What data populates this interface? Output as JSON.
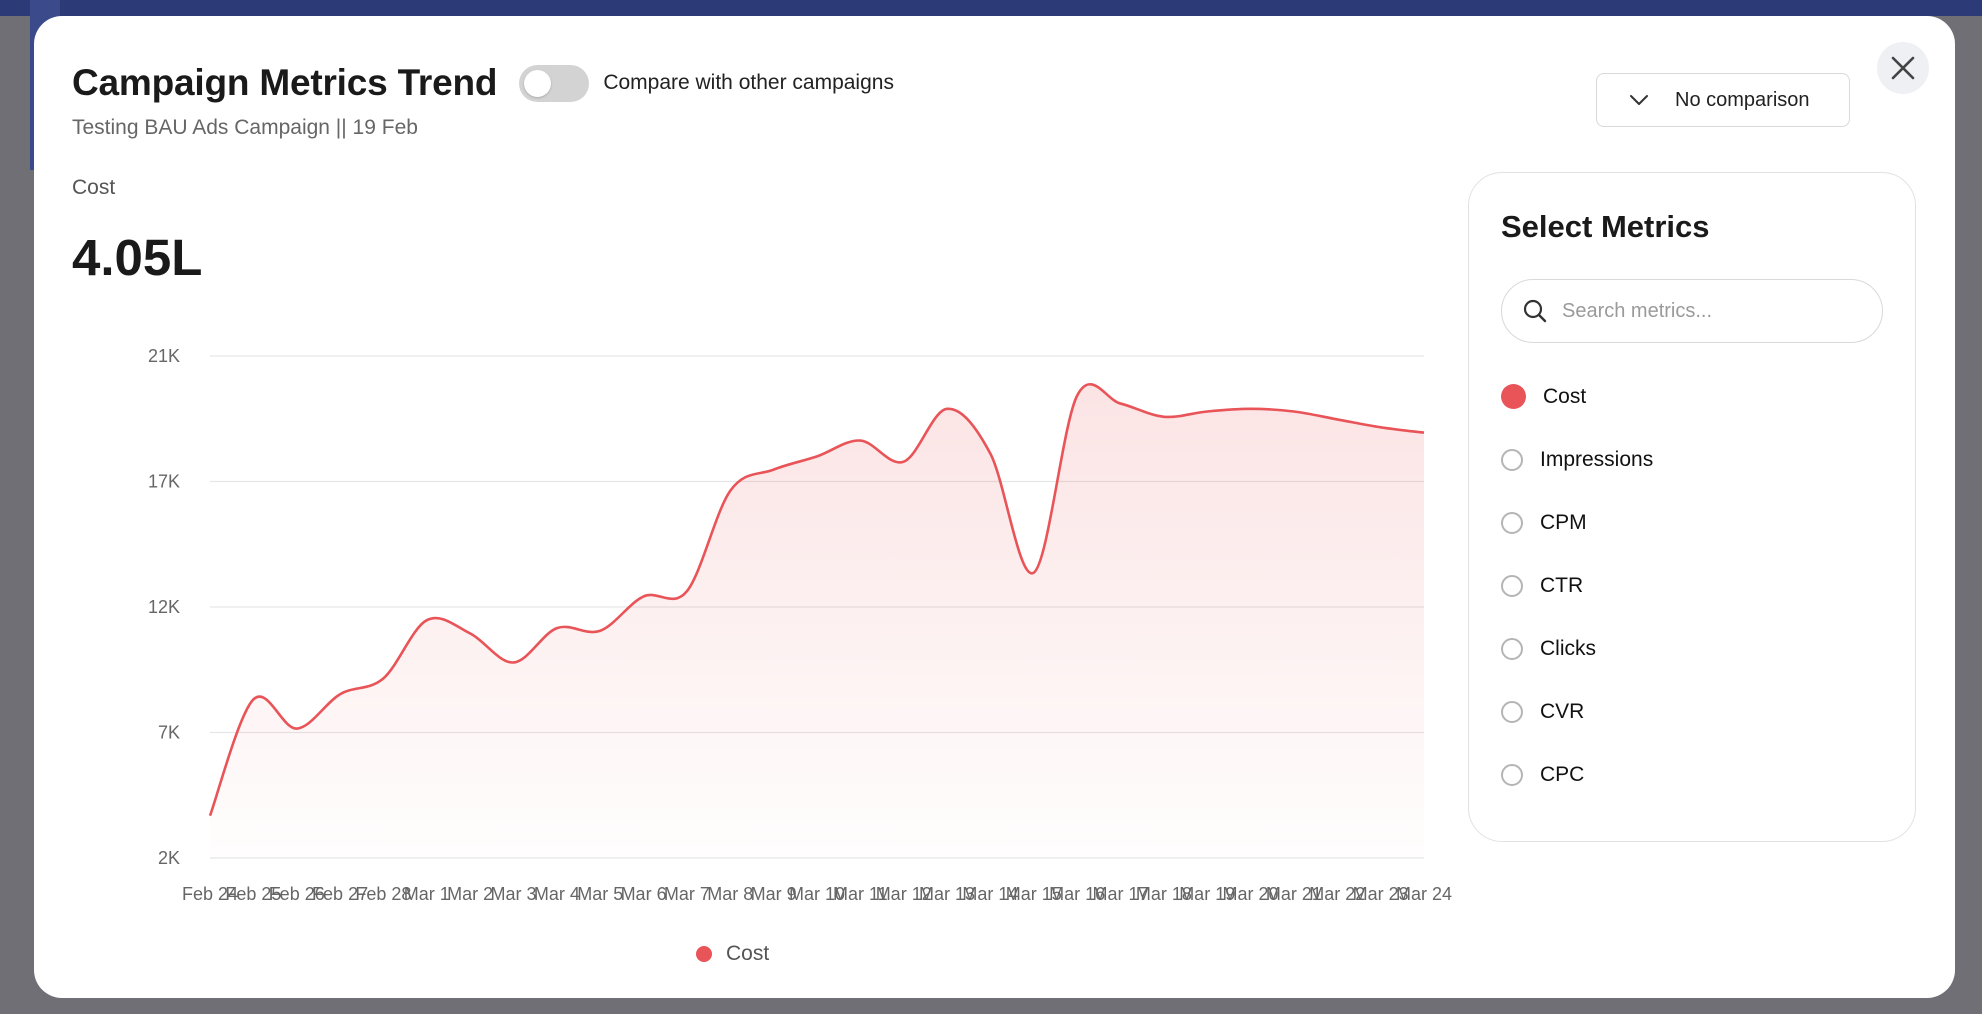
{
  "header": {
    "title": "Campaign Metrics Trend",
    "compare_toggle_label": "Compare with other campaigns",
    "compare_toggle_on": false,
    "subtitle": "Testing BAU Ads Campaign || 19 Feb"
  },
  "summary": {
    "metric_label": "Cost",
    "metric_value": "4.05L"
  },
  "comparison_dropdown": {
    "selected": "No comparison"
  },
  "panel": {
    "title": "Select Metrics",
    "search_placeholder": "Search metrics...",
    "metrics": [
      {
        "label": "Cost",
        "selected": true
      },
      {
        "label": "Impressions",
        "selected": false
      },
      {
        "label": "CPM",
        "selected": false
      },
      {
        "label": "CTR",
        "selected": false
      },
      {
        "label": "Clicks",
        "selected": false
      },
      {
        "label": "CVR",
        "selected": false
      },
      {
        "label": "CPC",
        "selected": false
      }
    ]
  },
  "colors": {
    "series": "#e85457",
    "accent_selected": "#e85457"
  },
  "chart_data": {
    "type": "area",
    "x": [
      "Feb 24",
      "Feb 25",
      "Feb 26",
      "Feb 27",
      "Feb 28",
      "Mar 1",
      "Mar 2",
      "Mar 3",
      "Mar 4",
      "Mar 5",
      "Mar 6",
      "Mar 7",
      "Mar 8",
      "Mar 9",
      "Mar 10",
      "Mar 11",
      "Mar 12",
      "Mar 13",
      "Mar 14",
      "Mar 15",
      "Mar 16",
      "Mar 17",
      "Mar 18",
      "Mar 19",
      "Mar 20",
      "Mar 21",
      "Mar 22",
      "Mar 23",
      "Mar 24"
    ],
    "y_ticks": [
      "21K",
      "17K",
      "12K",
      "7K",
      "2K"
    ],
    "ylim": [
      2000,
      21000
    ],
    "grid": true,
    "series": [
      {
        "name": "Cost",
        "values": [
          3600,
          8000,
          6900,
          8200,
          8800,
          11000,
          10500,
          9400,
          10700,
          10600,
          11900,
          12100,
          15900,
          16700,
          17200,
          17800,
          17000,
          19000,
          17300,
          12800,
          19500,
          19200,
          18700,
          18900,
          19000,
          18900,
          18600,
          18300,
          18100
        ]
      }
    ],
    "legend": {
      "position": "bottom-center",
      "entries": [
        "Cost"
      ]
    }
  }
}
